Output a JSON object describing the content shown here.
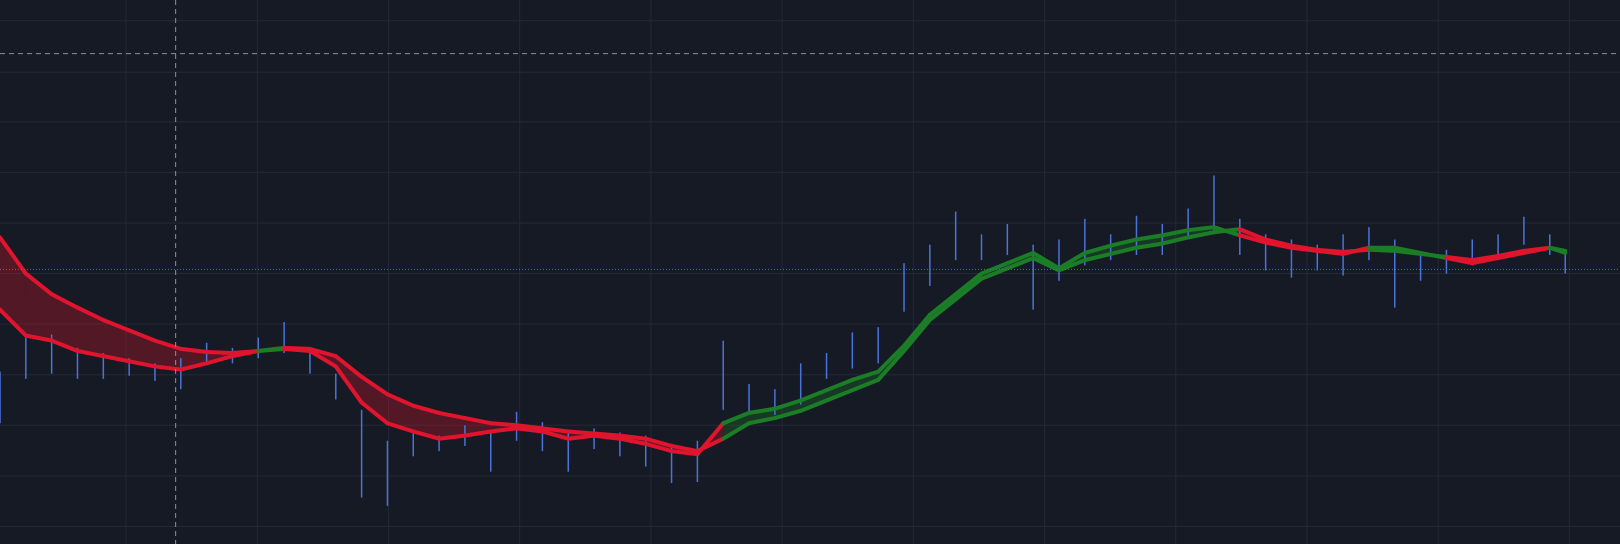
{
  "chart_data": {
    "type": "ema-cloud",
    "xlim": [
      0,
      1568
    ],
    "ylim": [
      0,
      527
    ],
    "xticks": [
      122,
      249,
      376,
      503,
      630,
      757,
      884,
      1011,
      1138,
      1265,
      1392,
      1519
    ],
    "yticks": [
      17,
      66,
      115,
      164,
      213,
      262,
      311,
      360,
      409,
      457,
      507
    ],
    "grid": true,
    "x": [
      0,
      25,
      50,
      75,
      100,
      125,
      150,
      175,
      200,
      225,
      250,
      275,
      300,
      325,
      350,
      375,
      400,
      425,
      450,
      475,
      500,
      525,
      550,
      575,
      600,
      625,
      650,
      675,
      700,
      725,
      750,
      775,
      800,
      825,
      850,
      875,
      900,
      925,
      950,
      975,
      1000,
      1025,
      1050,
      1075,
      1100,
      1125,
      1150,
      1175,
      1200,
      1225,
      1250,
      1275,
      1300,
      1325,
      1350,
      1375,
      1400,
      1425,
      1450,
      1475,
      1500,
      1515
    ],
    "high": [
      167,
      200,
      203,
      190,
      185,
      180,
      175,
      180,
      195,
      190,
      200,
      215,
      190,
      165,
      130,
      100,
      110,
      105,
      115,
      110,
      128,
      118,
      110,
      112,
      108,
      105,
      95,
      100,
      197,
      155,
      150,
      175,
      185,
      205,
      210,
      272,
      290,
      322,
      300,
      310,
      290,
      295,
      315,
      300,
      318,
      310,
      325,
      357,
      315,
      300,
      295,
      290,
      300,
      307,
      295,
      280,
      285,
      295,
      300,
      317,
      300,
      285
    ],
    "low": [
      117,
      160,
      165,
      160,
      160,
      163,
      158,
      150,
      175,
      175,
      180,
      185,
      165,
      140,
      45,
      37,
      85,
      90,
      95,
      70,
      100,
      90,
      70,
      92,
      85,
      75,
      59,
      60,
      130,
      125,
      125,
      135,
      160,
      170,
      175,
      225,
      250,
      275,
      275,
      280,
      227,
      255,
      270,
      275,
      280,
      280,
      295,
      300,
      280,
      265,
      258,
      265,
      260,
      275,
      229,
      255,
      262,
      270,
      278,
      290,
      280,
      262
    ],
    "bar_color": "#4a72d8",
    "fast": [
      227,
      202,
      197,
      187,
      182,
      177,
      172,
      169,
      175,
      182,
      187,
      189,
      187,
      172,
      137,
      117,
      109,
      102,
      105,
      109,
      112,
      109,
      102,
      105,
      102,
      97,
      90,
      87,
      117,
      127,
      131,
      139,
      149,
      159,
      167,
      192,
      222,
      242,
      262,
      272,
      282,
      267,
      282,
      289,
      295,
      299,
      304,
      307,
      299,
      292,
      287,
      284,
      281,
      287,
      287,
      282,
      277,
      272,
      277,
      282,
      287,
      282
    ],
    "slow": [
      297,
      262,
      242,
      229,
      217,
      207,
      197,
      189,
      186,
      185,
      187,
      190,
      189,
      182,
      162,
      145,
      134,
      127,
      122,
      117,
      115,
      112,
      109,
      107,
      105,
      102,
      95,
      90,
      102,
      117,
      122,
      129,
      139,
      149,
      159,
      187,
      217,
      237,
      257,
      267,
      277,
      265,
      275,
      281,
      287,
      291,
      297,
      302,
      305,
      295,
      289,
      285,
      283,
      285,
      284,
      281,
      278,
      275,
      279,
      284,
      287,
      284
    ],
    "bull_color": "#1b7d26",
    "bear_color": "#e0142c",
    "price_line": 266,
    "price_line_color": "#3d6fe0",
    "crosshair": {
      "x": 170,
      "y": 475
    }
  }
}
